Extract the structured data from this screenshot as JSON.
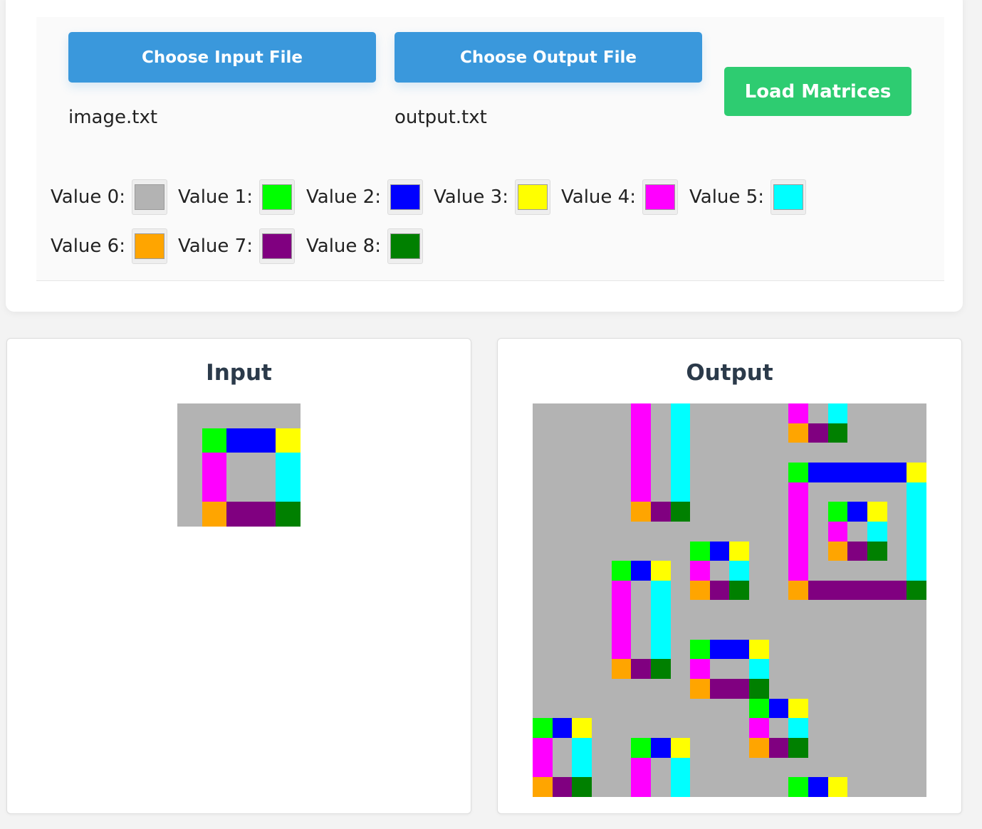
{
  "toolbar": {
    "input_button_label": "Choose Input File",
    "output_button_label": "Choose Output File",
    "load_button_label": "Load Matrices",
    "input_filename": "image.txt",
    "output_filename": "output.txt"
  },
  "legend": [
    {
      "label": "Value 0:",
      "color": "#b3b3b3"
    },
    {
      "label": "Value 1:",
      "color": "#00ff00"
    },
    {
      "label": "Value 2:",
      "color": "#0000ff"
    },
    {
      "label": "Value 3:",
      "color": "#ffff00"
    },
    {
      "label": "Value 4:",
      "color": "#ff00ff"
    },
    {
      "label": "Value 5:",
      "color": "#00ffff"
    },
    {
      "label": "Value 6:",
      "color": "#ffa500"
    },
    {
      "label": "Value 7:",
      "color": "#800080"
    },
    {
      "label": "Value 8:",
      "color": "#008000"
    }
  ],
  "input_panel": {
    "title": "Input",
    "matrix": [
      [
        0,
        0,
        0,
        0,
        0
      ],
      [
        0,
        1,
        2,
        2,
        3
      ],
      [
        0,
        4,
        0,
        0,
        5
      ],
      [
        0,
        4,
        0,
        0,
        5
      ],
      [
        0,
        6,
        7,
        7,
        8
      ]
    ]
  },
  "output_panel": {
    "title": "Output",
    "matrix": [
      [
        0,
        0,
        0,
        0,
        0,
        4,
        0,
        5,
        0,
        0,
        0,
        0,
        0,
        4,
        0,
        5,
        0,
        0,
        0,
        0
      ],
      [
        0,
        0,
        0,
        0,
        0,
        4,
        0,
        5,
        0,
        0,
        0,
        0,
        0,
        6,
        7,
        8,
        0,
        0,
        0,
        0
      ],
      [
        0,
        0,
        0,
        0,
        0,
        4,
        0,
        5,
        0,
        0,
        0,
        0,
        0,
        0,
        0,
        0,
        0,
        0,
        0,
        0
      ],
      [
        0,
        0,
        0,
        0,
        0,
        4,
        0,
        5,
        0,
        0,
        0,
        0,
        0,
        1,
        2,
        2,
        2,
        2,
        2,
        3
      ],
      [
        0,
        0,
        0,
        0,
        0,
        4,
        0,
        5,
        0,
        0,
        0,
        0,
        0,
        4,
        0,
        0,
        0,
        0,
        0,
        5
      ],
      [
        0,
        0,
        0,
        0,
        0,
        6,
        7,
        8,
        0,
        0,
        0,
        0,
        0,
        4,
        0,
        1,
        2,
        3,
        0,
        5
      ],
      [
        0,
        0,
        0,
        0,
        0,
        0,
        0,
        0,
        0,
        0,
        0,
        0,
        0,
        4,
        0,
        4,
        0,
        5,
        0,
        5
      ],
      [
        0,
        0,
        0,
        0,
        0,
        0,
        0,
        0,
        1,
        2,
        3,
        0,
        0,
        4,
        0,
        6,
        7,
        8,
        0,
        5
      ],
      [
        0,
        0,
        0,
        0,
        1,
        2,
        3,
        0,
        4,
        0,
        5,
        0,
        0,
        4,
        0,
        0,
        0,
        0,
        0,
        5
      ],
      [
        0,
        0,
        0,
        0,
        4,
        0,
        5,
        0,
        6,
        7,
        8,
        0,
        0,
        6,
        7,
        7,
        7,
        7,
        7,
        8
      ],
      [
        0,
        0,
        0,
        0,
        4,
        0,
        5,
        0,
        0,
        0,
        0,
        0,
        0,
        0,
        0,
        0,
        0,
        0,
        0,
        0
      ],
      [
        0,
        0,
        0,
        0,
        4,
        0,
        5,
        0,
        0,
        0,
        0,
        0,
        0,
        0,
        0,
        0,
        0,
        0,
        0,
        0
      ],
      [
        0,
        0,
        0,
        0,
        4,
        0,
        5,
        0,
        1,
        2,
        2,
        3,
        0,
        0,
        0,
        0,
        0,
        0,
        0,
        0
      ],
      [
        0,
        0,
        0,
        0,
        6,
        7,
        8,
        0,
        4,
        0,
        0,
        5,
        0,
        0,
        0,
        0,
        0,
        0,
        0,
        0
      ],
      [
        0,
        0,
        0,
        0,
        0,
        0,
        0,
        0,
        6,
        7,
        7,
        8,
        0,
        0,
        0,
        0,
        0,
        0,
        0,
        0
      ],
      [
        0,
        0,
        0,
        0,
        0,
        0,
        0,
        0,
        0,
        0,
        0,
        1,
        2,
        3,
        0,
        0,
        0,
        0,
        0,
        0
      ],
      [
        1,
        2,
        3,
        0,
        0,
        0,
        0,
        0,
        0,
        0,
        0,
        4,
        0,
        5,
        0,
        0,
        0,
        0,
        0,
        0
      ],
      [
        4,
        0,
        5,
        0,
        0,
        1,
        2,
        3,
        0,
        0,
        0,
        6,
        7,
        8,
        0,
        0,
        0,
        0,
        0,
        0
      ],
      [
        4,
        0,
        5,
        0,
        0,
        4,
        0,
        5,
        0,
        0,
        0,
        0,
        0,
        0,
        0,
        0,
        0,
        0,
        0,
        0
      ],
      [
        6,
        7,
        8,
        0,
        0,
        4,
        0,
        5,
        0,
        0,
        0,
        0,
        0,
        1,
        2,
        3,
        0,
        0,
        0,
        0
      ]
    ]
  }
}
